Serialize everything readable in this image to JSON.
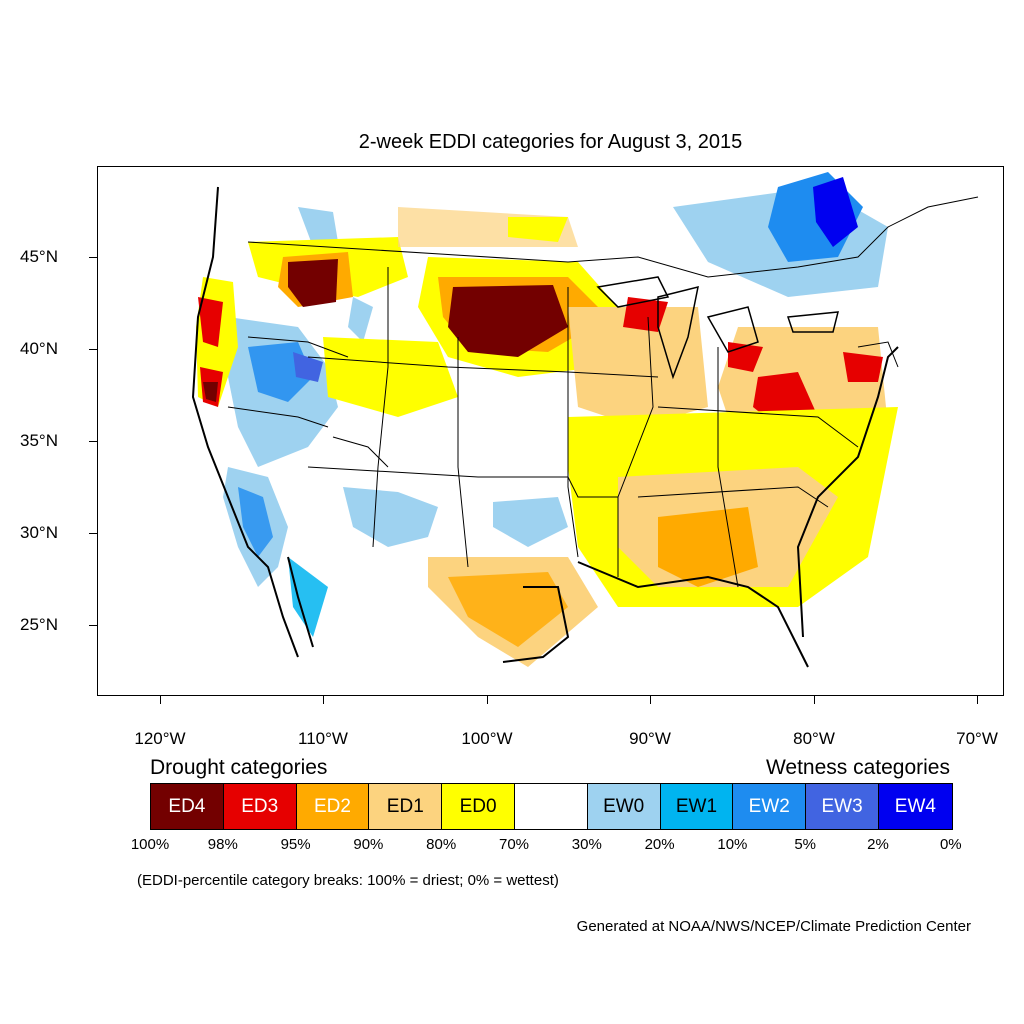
{
  "title": "2-week EDDI categories for August 3, 2015",
  "map": {
    "lat_labels": [
      "45°N",
      "40°N",
      "35°N",
      "30°N",
      "25°N"
    ],
    "lon_labels": [
      "120°W",
      "110°W",
      "100°W",
      "90°W",
      "80°W",
      "70°W"
    ]
  },
  "legend": {
    "drought_heading": "Drought categories",
    "wetness_heading": "Wetness categories",
    "categories": [
      {
        "label": "ED4",
        "color": "#730000",
        "text_color": "#ffffff"
      },
      {
        "label": "ED3",
        "color": "#e60000",
        "text_color": "#ffffff"
      },
      {
        "label": "ED2",
        "color": "#ffaa00",
        "text_color": "#ffffff"
      },
      {
        "label": "ED1",
        "color": "#fcd37f",
        "text_color": "#000000"
      },
      {
        "label": "ED0",
        "color": "#ffff00",
        "text_color": "#000000"
      },
      {
        "label": "",
        "color": "#ffffff",
        "text_color": "#000000"
      },
      {
        "label": "EW0",
        "color": "#9ed2f0",
        "text_color": "#000000"
      },
      {
        "label": "EW1",
        "color": "#00b4f0",
        "text_color": "#000000"
      },
      {
        "label": "EW2",
        "color": "#1e8cf0",
        "text_color": "#ffffff"
      },
      {
        "label": "EW3",
        "color": "#4164e1",
        "text_color": "#ffffff"
      },
      {
        "label": "EW4",
        "color": "#0000f0",
        "text_color": "#ffffff"
      }
    ],
    "percentiles": [
      "100%",
      "98%",
      "95%",
      "90%",
      "80%",
      "70%",
      "30%",
      "20%",
      "10%",
      "5%",
      "2%",
      "0%"
    ]
  },
  "note": "(EDDI-percentile category breaks: 100% = driest; 0% = wettest)",
  "credit": "Generated at NOAA/NWS/NCEP/Climate Prediction Center"
}
